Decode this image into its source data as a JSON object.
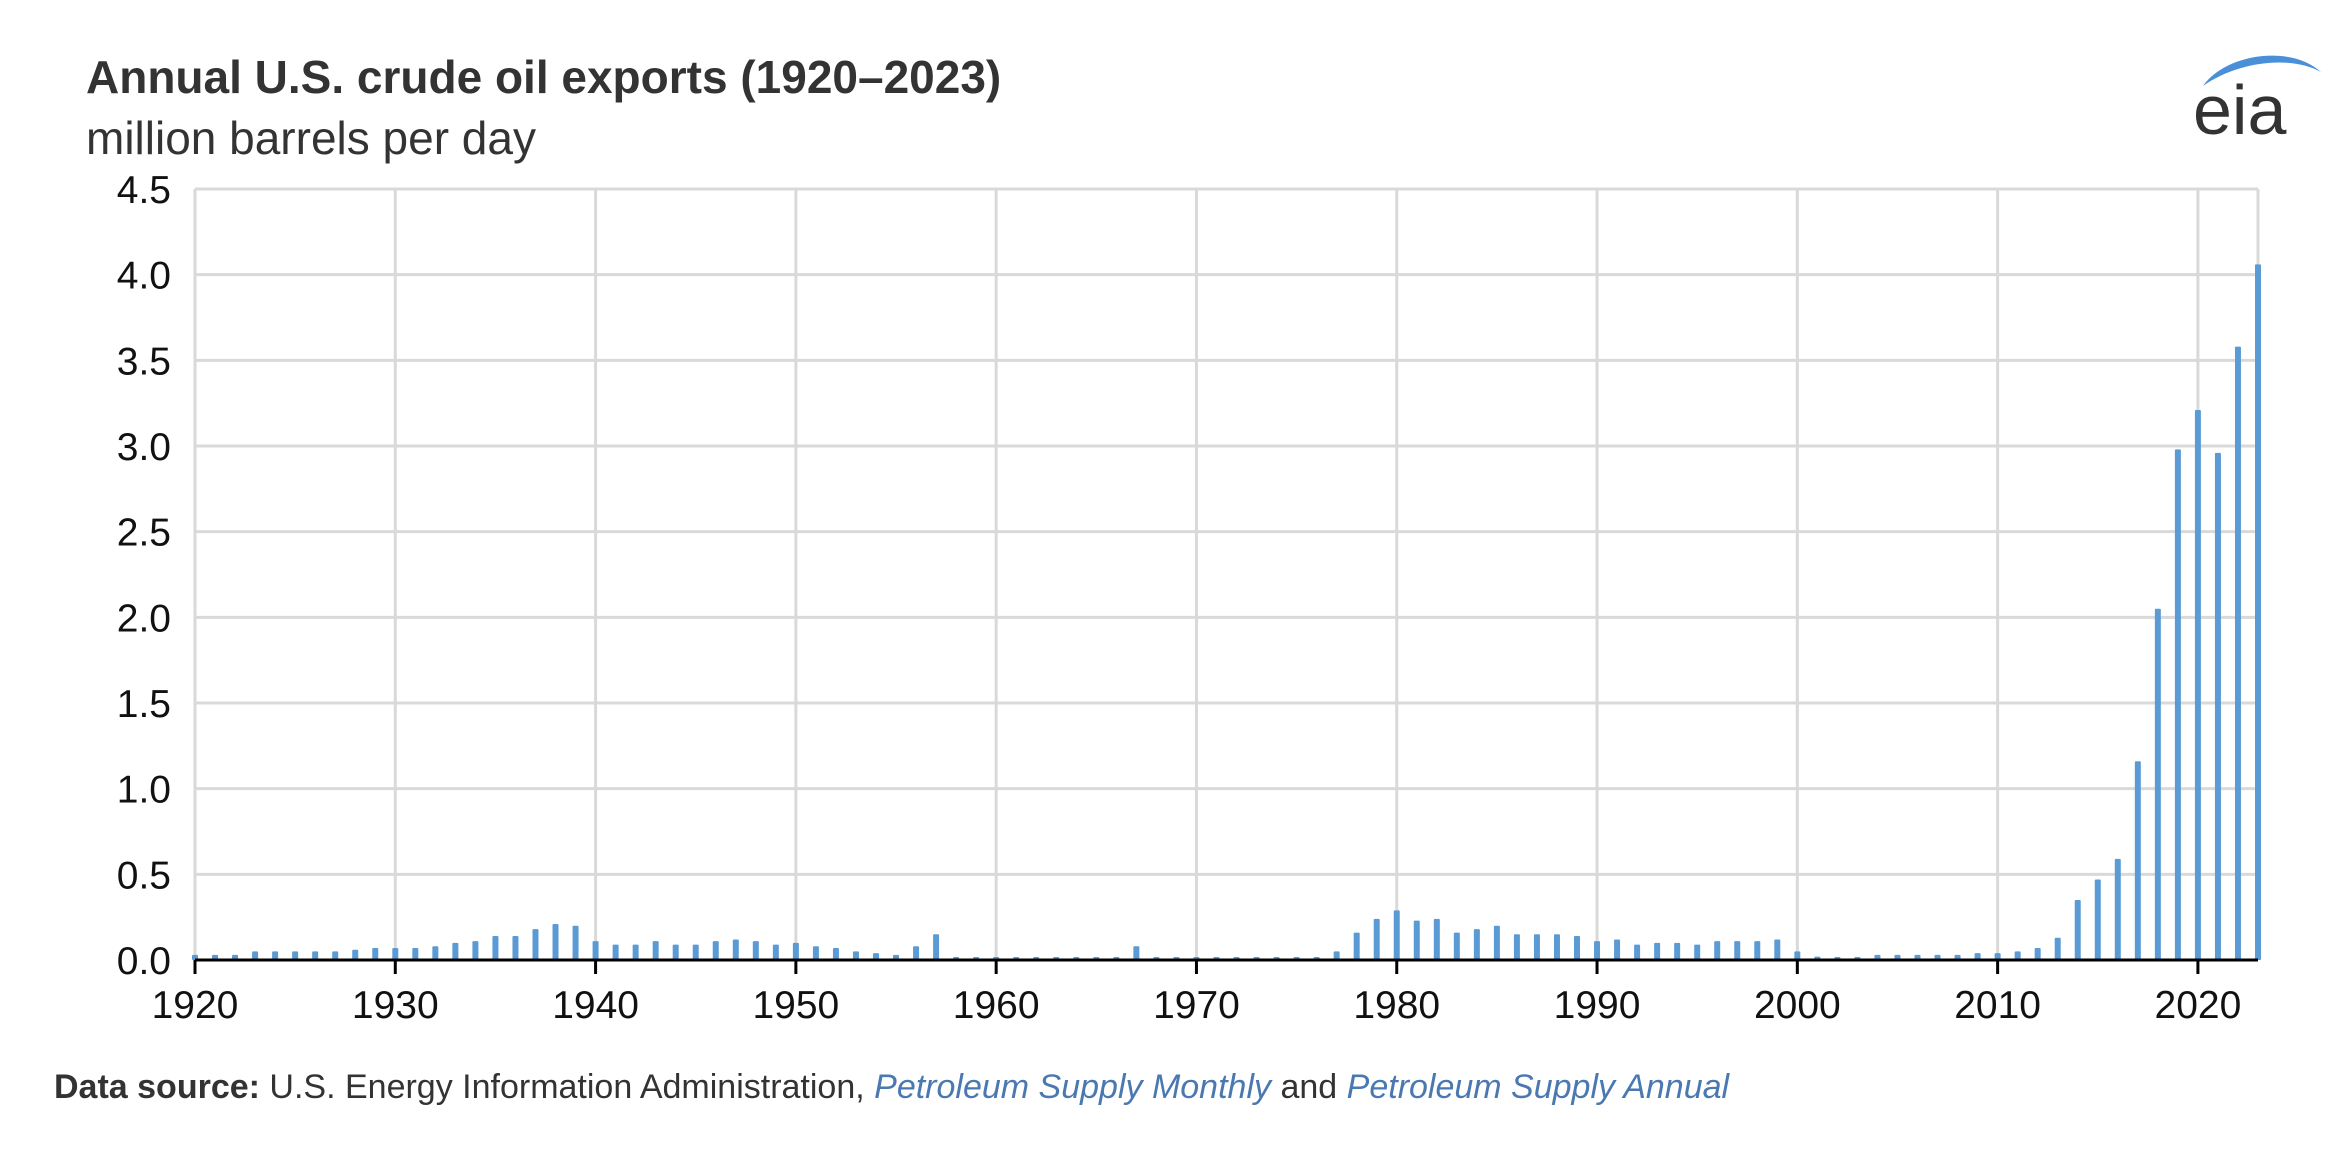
{
  "header": {
    "title": "Annual U.S. crude oil exports (1920–2023)",
    "subtitle": "million barrels per day"
  },
  "logo": {
    "text": "eia",
    "icon": "eia-logo-icon",
    "accent": "#4a90d9"
  },
  "source": {
    "label": "Data source:",
    "text1": "U.S. Energy Information Administration,",
    "ref1": "Petroleum Supply Monthly",
    "and": "and",
    "ref2": "Petroleum Supply Annual"
  },
  "colors": {
    "bar": "#5b9bd5",
    "grid": "#d9d9d9",
    "axis": "#000000",
    "link": "#4a78b0"
  },
  "chart_data": {
    "type": "bar",
    "title": "Annual U.S. crude oil exports (1920–2023)",
    "ylabel": "million barrels per day",
    "xlabel": "",
    "xlim": [
      1920,
      2023
    ],
    "ylim": [
      0,
      4.5
    ],
    "grid": true,
    "x_ticks": [
      "1920",
      "1930",
      "1940",
      "1950",
      "1960",
      "1970",
      "1980",
      "1990",
      "2000",
      "2010",
      "2020"
    ],
    "y_ticks": [
      "0.0",
      "0.5",
      "1.0",
      "1.5",
      "2.0",
      "2.5",
      "3.0",
      "3.5",
      "4.0",
      "4.5"
    ],
    "categories": [
      1920,
      1921,
      1922,
      1923,
      1924,
      1925,
      1926,
      1927,
      1928,
      1929,
      1930,
      1931,
      1932,
      1933,
      1934,
      1935,
      1936,
      1937,
      1938,
      1939,
      1940,
      1941,
      1942,
      1943,
      1944,
      1945,
      1946,
      1947,
      1948,
      1949,
      1950,
      1951,
      1952,
      1953,
      1954,
      1955,
      1956,
      1957,
      1958,
      1959,
      1960,
      1961,
      1962,
      1963,
      1964,
      1965,
      1966,
      1967,
      1968,
      1969,
      1970,
      1971,
      1972,
      1973,
      1974,
      1975,
      1976,
      1977,
      1978,
      1979,
      1980,
      1981,
      1982,
      1983,
      1984,
      1985,
      1986,
      1987,
      1988,
      1989,
      1990,
      1991,
      1992,
      1993,
      1994,
      1995,
      1996,
      1997,
      1998,
      1999,
      2000,
      2001,
      2002,
      2003,
      2004,
      2005,
      2006,
      2007,
      2008,
      2009,
      2010,
      2011,
      2012,
      2013,
      2014,
      2015,
      2016,
      2017,
      2018,
      2019,
      2020,
      2021,
      2022,
      2023
    ],
    "values": [
      0.03,
      0.03,
      0.03,
      0.05,
      0.05,
      0.05,
      0.05,
      0.05,
      0.06,
      0.07,
      0.07,
      0.07,
      0.08,
      0.1,
      0.11,
      0.14,
      0.14,
      0.18,
      0.21,
      0.2,
      0.11,
      0.09,
      0.09,
      0.11,
      0.09,
      0.09,
      0.11,
      0.12,
      0.11,
      0.09,
      0.1,
      0.08,
      0.07,
      0.05,
      0.04,
      0.03,
      0.08,
      0.15,
      0.01,
      0.01,
      0.01,
      0.01,
      0.01,
      0.01,
      0.01,
      0.01,
      0.01,
      0.08,
      0.01,
      0.01,
      0.01,
      0.01,
      0.01,
      0.01,
      0.01,
      0.01,
      0.01,
      0.05,
      0.16,
      0.24,
      0.29,
      0.23,
      0.24,
      0.16,
      0.18,
      0.2,
      0.15,
      0.15,
      0.15,
      0.14,
      0.11,
      0.12,
      0.09,
      0.1,
      0.1,
      0.09,
      0.11,
      0.11,
      0.11,
      0.12,
      0.05,
      0.02,
      0.01,
      0.01,
      0.03,
      0.03,
      0.03,
      0.03,
      0.03,
      0.04,
      0.04,
      0.05,
      0.07,
      0.13,
      0.35,
      0.47,
      0.59,
      1.16,
      2.05,
      2.98,
      3.21,
      2.96,
      3.58,
      4.06
    ]
  }
}
